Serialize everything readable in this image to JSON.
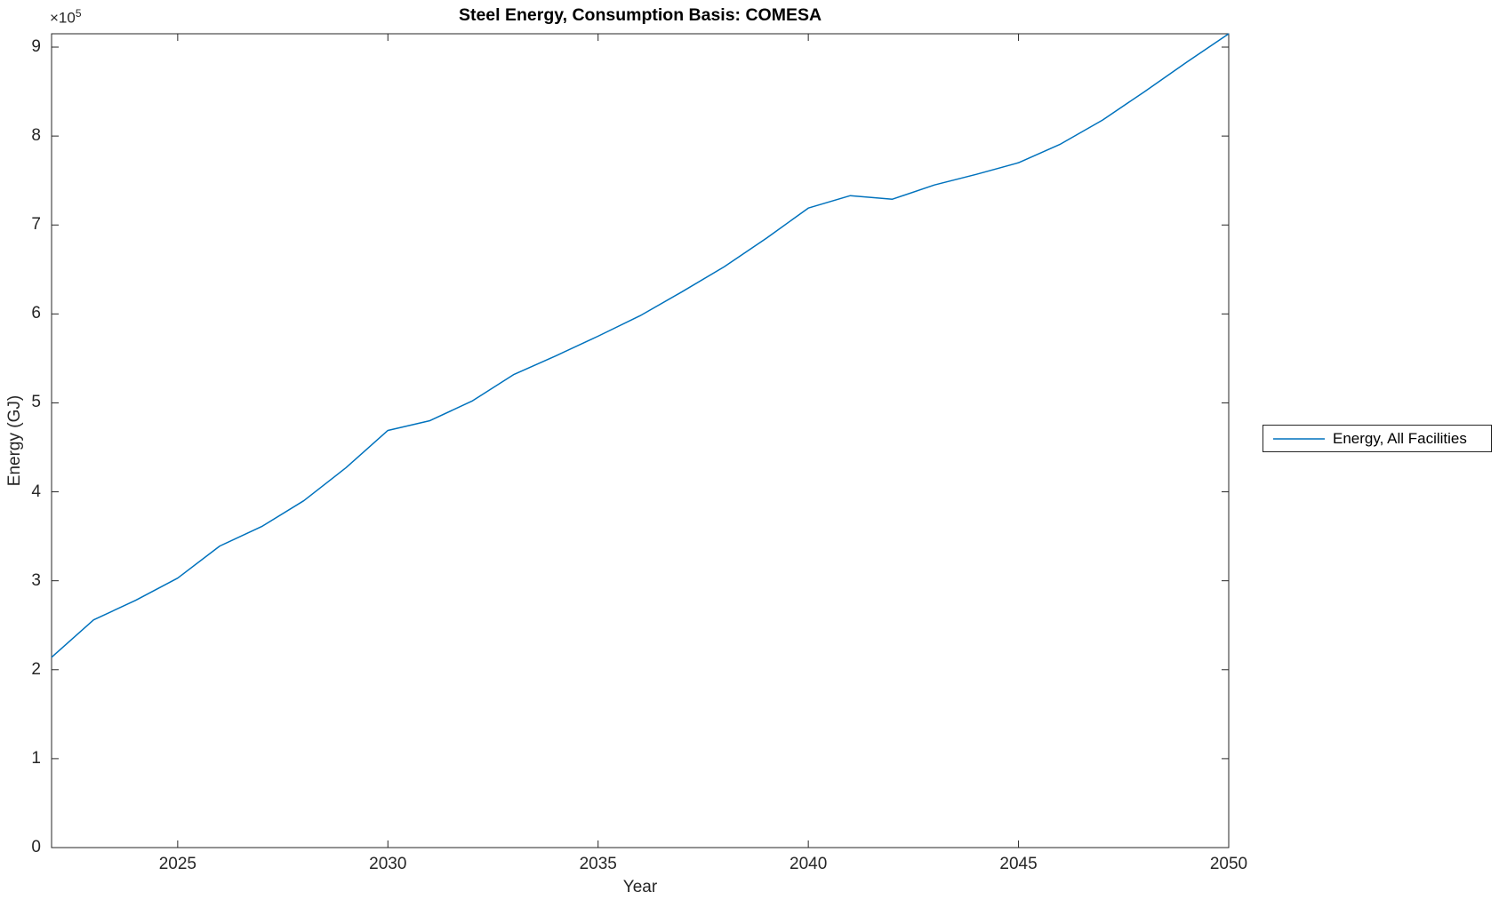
{
  "figure": {
    "background": "#ffffff",
    "axes_color": "#262626"
  },
  "chart_data": {
    "type": "line",
    "title": "Steel Energy, Consumption Basis: COMESA",
    "xlabel": "Year",
    "ylabel": "Energy (GJ)",
    "y_axis_multiplier": {
      "base": "×10",
      "exponent": "5"
    },
    "xlim": [
      2022,
      2050
    ],
    "ylim": [
      0,
      915000
    ],
    "grid": false,
    "legend": {
      "position": "right-outside",
      "entries": [
        "Energy, All Facilities"
      ]
    },
    "xticks": [
      {
        "value": 2025,
        "label": "2025"
      },
      {
        "value": 2030,
        "label": "2030"
      },
      {
        "value": 2035,
        "label": "2035"
      },
      {
        "value": 2040,
        "label": "2040"
      },
      {
        "value": 2045,
        "label": "2045"
      },
      {
        "value": 2050,
        "label": "2050"
      }
    ],
    "yticks": [
      {
        "value": 0,
        "label": "0"
      },
      {
        "value": 100000,
        "label": "1"
      },
      {
        "value": 200000,
        "label": "2"
      },
      {
        "value": 300000,
        "label": "3"
      },
      {
        "value": 400000,
        "label": "4"
      },
      {
        "value": 500000,
        "label": "5"
      },
      {
        "value": 600000,
        "label": "6"
      },
      {
        "value": 700000,
        "label": "7"
      },
      {
        "value": 800000,
        "label": "8"
      },
      {
        "value": 900000,
        "label": "9"
      }
    ],
    "series": [
      {
        "name": "Energy, All Facilities",
        "color": "#0072BD",
        "x": [
          2022,
          2023,
          2024,
          2025,
          2026,
          2027,
          2028,
          2029,
          2030,
          2031,
          2032,
          2033,
          2034,
          2035,
          2036,
          2037,
          2038,
          2039,
          2040,
          2041,
          2042,
          2043,
          2044,
          2045,
          2046,
          2047,
          2048,
          2049,
          2050
        ],
        "values": [
          214000,
          256000,
          278000,
          303000,
          339000,
          361000,
          390000,
          427000,
          469000,
          480000,
          502000,
          532000,
          553000,
          575000,
          598000,
          625000,
          653000,
          685000,
          719000,
          733000,
          729000,
          745000,
          757000,
          770000,
          791000,
          818000,
          850000,
          883000,
          915000
        ]
      }
    ]
  }
}
